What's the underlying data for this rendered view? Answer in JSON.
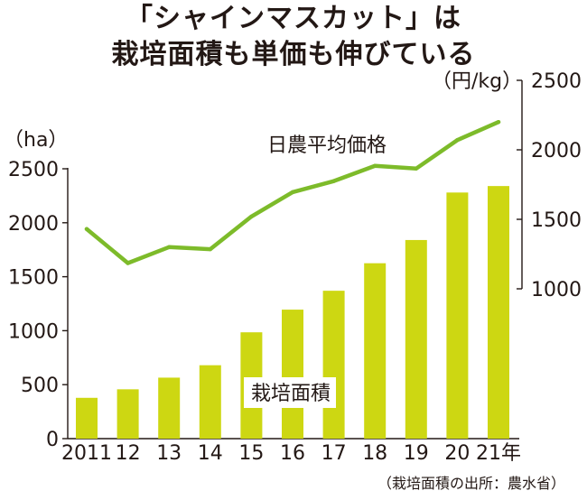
{
  "title": {
    "line1": "「シャインマスカット」は",
    "line2": "栽培面積も単価も伸びている"
  },
  "source": "（栽培面積の出所：農水省）",
  "colors": {
    "bar": "#cdd712",
    "line": "#7dbb2a",
    "axis": "#231815"
  },
  "chart_data": {
    "type": "bar+line",
    "categories": [
      "2011",
      "12",
      "13",
      "14",
      "15",
      "16",
      "17",
      "18",
      "19",
      "20",
      "21年"
    ],
    "series": [
      {
        "name": "栽培面積",
        "type": "bar",
        "axis": "left",
        "values": [
          378,
          457,
          565,
          680,
          985,
          1195,
          1370,
          1625,
          1840,
          2280,
          2340
        ]
      },
      {
        "name": "日農平均価格",
        "type": "line",
        "axis": "right",
        "values": [
          1430,
          1185,
          1300,
          1285,
          1520,
          1695,
          1775,
          1885,
          1865,
          2070,
          2200
        ]
      }
    ],
    "y_left": {
      "label": "（ha）",
      "range": [
        0,
        2500
      ],
      "ticks": [
        "0",
        "500",
        "1000",
        "1500",
        "2000",
        "2500"
      ]
    },
    "y_right": {
      "label": "（円/kg）",
      "range": [
        1000,
        2500
      ],
      "ticks": [
        "1000",
        "1500",
        "2000",
        "2500"
      ]
    }
  }
}
